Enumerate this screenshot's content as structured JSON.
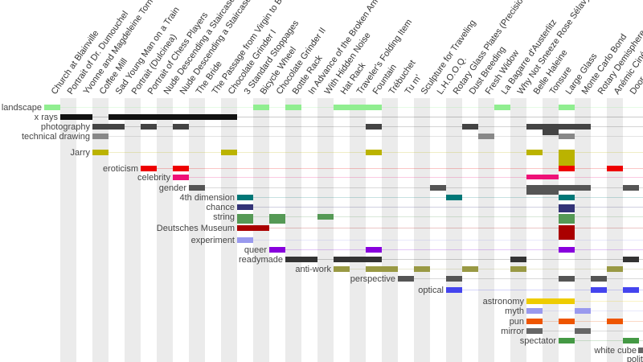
{
  "chart_data": {
    "type": "table",
    "title": "",
    "columns": [
      "Church at Blainville",
      "Portrait of Dr. Dumouchel",
      "Yvonne and Magdeleine Torn in Tatters",
      "Coffee Mill",
      "Sad Young Man on a Train",
      "Portrait (Dulcinea)",
      "Portrait of Chess Players",
      "Nude Descending a Staircase no. 1",
      "Nude Descending a Staircase no. 2",
      "The Bride",
      "The Passage from Virgin to Bride",
      "Chocolate Grinder I",
      "3 Standard Stoppages",
      "Bicycle Wheel",
      "Chocolate Grinder II",
      "Bottle Rack",
      "In Advance of the Broken Arm",
      "With Hidden Noise",
      "Hat Rack",
      "Traveler's Folding Item",
      "Fountain",
      "Trébuchet",
      "Tu m'",
      "Sculpture for Traveling",
      "L.H.O.O.Q.",
      "Rotary Glass Plates (Precision Optics)",
      "Dust Breeding",
      "Fresh Widow",
      "La Bagarre d'Austerlitz",
      "Why Not Sneeze Rose Sélavy?",
      "Belle Haleine",
      "Tonsure",
      "Large Glass",
      "Monte Carlo Bond",
      "Rotary Demisphere",
      "Anémic Cinéma",
      "Door"
    ],
    "rows": [
      {
        "label": "landscape",
        "color": "#90ee90",
        "cells": [
          0,
          13,
          15,
          18,
          19,
          20,
          28,
          32
        ],
        "label_side": "left"
      },
      {
        "label": "x rays",
        "color": "#111111",
        "cells": [
          1,
          2,
          4,
          5,
          6,
          7,
          8,
          9,
          10,
          11
        ],
        "label_side": "left"
      },
      {
        "label": "photography",
        "color": "#444444",
        "cells": [
          3,
          4,
          6,
          8,
          20,
          26,
          30,
          31,
          32,
          33
        ],
        "label_side": "left"
      },
      {
        "label": "technical drawing",
        "color": "#888888",
        "cells": [
          3,
          27,
          32
        ],
        "label_side": "left"
      },
      {
        "label": "Jarry",
        "color": "#bbb300",
        "cells": [
          3,
          11,
          20,
          30,
          32
        ],
        "label_side": "left"
      },
      {
        "label": "eroticism",
        "color": "#ee0000",
        "cells": [
          6,
          8,
          32,
          35
        ],
        "label_side": "left"
      },
      {
        "label": "celebrity",
        "color": "#ee1177",
        "cells": [
          8,
          30,
          31
        ],
        "label_side": "left"
      },
      {
        "label": "gender",
        "color": "#555555",
        "cells": [
          9,
          24,
          30,
          31,
          32,
          33,
          36
        ],
        "label_side": "left"
      },
      {
        "label": "4th dimension",
        "color": "#007777",
        "cells": [
          12,
          25,
          32
        ],
        "label_side": "left"
      },
      {
        "label": "chance",
        "color": "#333377",
        "cells": [
          12,
          32
        ],
        "label_side": "left"
      },
      {
        "label": "string",
        "color": "#559955",
        "cells": [
          12,
          14,
          17,
          32
        ],
        "label_side": "left"
      },
      {
        "label": "Deutsches Museum",
        "color": "#aa0000",
        "cells": [
          12,
          13,
          32
        ],
        "label_side": "left"
      },
      {
        "label": "experiment",
        "color": "#9999ee",
        "cells": [
          12
        ],
        "label_side": "left"
      },
      {
        "label": "queer",
        "color": "#8800dd",
        "cells": [
          14,
          20,
          32
        ],
        "label_side": "left"
      },
      {
        "label": "readymade",
        "color": "#333333",
        "cells": [
          15,
          16,
          18,
          19,
          20,
          29,
          36
        ],
        "label_side": "left"
      },
      {
        "label": "anti-work",
        "color": "#999944",
        "cells": [
          18,
          20,
          21,
          23,
          26,
          29,
          35
        ],
        "label_side": "left"
      },
      {
        "label": "perspective",
        "color": "#555555",
        "cells": [
          22,
          25,
          32,
          34
        ],
        "label_side": "left"
      },
      {
        "label": "optical",
        "color": "#4444ee",
        "cells": [
          25,
          34,
          36
        ],
        "label_side": "left"
      },
      {
        "label": "astronomy",
        "color": "#eecc00",
        "cells": [
          30,
          31,
          32
        ],
        "label_side": "left"
      },
      {
        "label": "myth",
        "color": "#9999ee",
        "cells": [
          30,
          33
        ],
        "label_side": "left"
      },
      {
        "label": "pun",
        "color": "#ee5500",
        "cells": [
          30,
          32,
          35
        ],
        "label_side": "left"
      },
      {
        "label": "mirror",
        "color": "#666666",
        "cells": [
          30,
          33
        ],
        "label_side": "left"
      },
      {
        "label": "spectator",
        "color": "#449944",
        "cells": [
          32,
          36
        ],
        "label_side": "left"
      },
      {
        "label": "white cube",
        "color": "#666666",
        "cells": [],
        "label_side": "left"
      },
      {
        "label": "polit",
        "color": "#666666",
        "cells": [],
        "label_side": "left"
      }
    ]
  }
}
